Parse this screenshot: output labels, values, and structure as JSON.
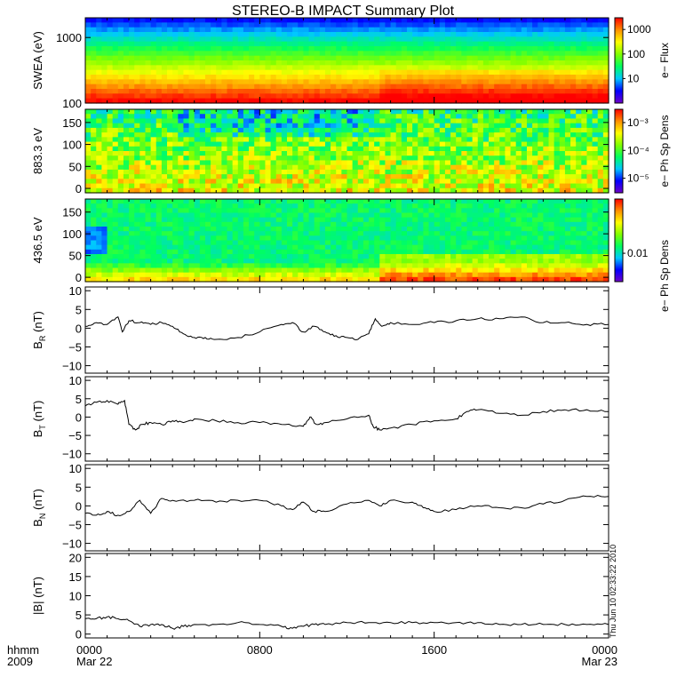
{
  "title": "STEREO-B IMPACT Summary Plot",
  "stamp": "Thu Jun 10 02:33:22 2010",
  "time_axis": {
    "row1_left": "hhmm",
    "row2_left": "2009",
    "ticks": [
      {
        "hour": 0,
        "label": "0000",
        "sub": "Mar 22"
      },
      {
        "hour": 8,
        "label": "0800",
        "sub": ""
      },
      {
        "hour": 16,
        "label": "1600",
        "sub": ""
      },
      {
        "hour": 24,
        "label": "0000",
        "sub": "Mar 23"
      }
    ],
    "range_hours": [
      0,
      24
    ]
  },
  "colors": {
    "line": "#000000",
    "ramp": [
      "#7000c8",
      "#0000ff",
      "#00c8ff",
      "#00ff60",
      "#80ff00",
      "#ffff00",
      "#ff9000",
      "#ff0000"
    ]
  },
  "chart_data": [
    {
      "type": "heatmap",
      "ylabel": "SWEA (eV)",
      "yscale": "log",
      "ylim": [
        100,
        2000
      ],
      "yticks": [
        {
          "v": 100,
          "label": "100"
        },
        {
          "v": 1000,
          "label": "1000"
        }
      ],
      "colorbar": {
        "label": "e− Flux",
        "scale": "log",
        "range": [
          1,
          3000
        ],
        "ticks": [
          {
            "v": 10,
            "label": "10"
          },
          {
            "v": 100,
            "label": "100"
          },
          {
            "v": 1000,
            "label": "1000"
          }
        ]
      }
    },
    {
      "type": "heatmap",
      "ylabel": "883.3 eV",
      "ylim": [
        -10,
        180
      ],
      "yticks": [
        {
          "v": 0,
          "label": "0"
        },
        {
          "v": 50,
          "label": "50"
        },
        {
          "v": 100,
          "label": "100"
        },
        {
          "v": 150,
          "label": "150"
        }
      ],
      "colorbar": {
        "label": "e− Ph Sp Dens",
        "scale": "log",
        "range": [
          3e-06,
          0.003
        ],
        "ticks": [
          {
            "v": 1e-05,
            "label": "10⁻⁵"
          },
          {
            "v": 0.0001,
            "label": "10⁻⁴"
          },
          {
            "v": 0.001,
            "label": "10⁻³"
          }
        ]
      }
    },
    {
      "type": "heatmap",
      "ylabel": "436.5 eV",
      "ylim": [
        -10,
        180
      ],
      "yticks": [
        {
          "v": 0,
          "label": "0"
        },
        {
          "v": 50,
          "label": "50"
        },
        {
          "v": 100,
          "label": "100"
        },
        {
          "v": 150,
          "label": "150"
        }
      ],
      "colorbar": {
        "label": "e− Ph Sp Dens",
        "scale": "log",
        "range": [
          0.003,
          0.1
        ],
        "ticks": [
          {
            "v": 0.01,
            "label": "0.01"
          }
        ]
      }
    },
    {
      "type": "line",
      "ylabel": "B",
      "ylabel_sub": "R",
      "ylabel_unit": "(nT)",
      "ylim": [
        -12,
        11
      ],
      "yticks": [
        {
          "v": -10,
          "label": "−10"
        },
        {
          "v": -5,
          "label": "−5"
        },
        {
          "v": 0,
          "label": "0"
        },
        {
          "v": 5,
          "label": "5"
        },
        {
          "v": 10,
          "label": "10"
        }
      ],
      "x": [
        0,
        0.5,
        1,
        1.5,
        1.7,
        2,
        2.5,
        3,
        3.5,
        4,
        4.5,
        5,
        5.5,
        6,
        7,
        8,
        9,
        9.5,
        10,
        10.5,
        11,
        11.5,
        12,
        12.5,
        13,
        13.3,
        13.6,
        14,
        15,
        16,
        17,
        18,
        19,
        20,
        21,
        22,
        23,
        24
      ],
      "values": [
        0.5,
        1.5,
        1.0,
        3.0,
        -1.0,
        2.0,
        1.5,
        1.0,
        1.5,
        0.5,
        -1.5,
        -2.5,
        -2.5,
        -3.0,
        -2.5,
        -1.0,
        1.0,
        1.5,
        -1.0,
        0.5,
        -1.0,
        -2.0,
        -2.5,
        -3.0,
        -1.5,
        2.5,
        0.5,
        1.5,
        1.0,
        1.5,
        2.0,
        2.5,
        2.5,
        3.0,
        1.5,
        1.5,
        1.0,
        1.0
      ]
    },
    {
      "type": "line",
      "ylabel": "B",
      "ylabel_sub": "T",
      "ylabel_unit": "(nT)",
      "ylim": [
        -12,
        11
      ],
      "yticks": [
        {
          "v": -10,
          "label": "−10"
        },
        {
          "v": -5,
          "label": "−5"
        },
        {
          "v": 0,
          "label": "0"
        },
        {
          "v": 5,
          "label": "5"
        },
        {
          "v": 10,
          "label": "10"
        }
      ],
      "x": [
        0,
        0.5,
        1,
        1.5,
        1.8,
        2,
        2.3,
        2.6,
        3,
        3.5,
        4,
        4.5,
        5,
        6,
        7,
        8,
        9,
        10,
        10.3,
        10.6,
        11,
        12,
        13,
        13.2,
        13.5,
        14,
        15,
        16,
        17,
        17.5,
        18,
        19,
        20,
        21,
        22,
        23,
        24
      ],
      "values": [
        3.0,
        4.0,
        4.5,
        3.5,
        4.5,
        -2.0,
        -3.5,
        -2.0,
        -1.5,
        -2.0,
        -1.0,
        -1.5,
        -0.5,
        -1.0,
        -1.5,
        -1.5,
        -2.0,
        -2.5,
        0.0,
        -2.0,
        -1.5,
        -0.5,
        0.5,
        -2.5,
        -3.5,
        -3.0,
        -2.0,
        -1.0,
        -0.5,
        1.5,
        2.0,
        1.0,
        0.5,
        1.5,
        2.0,
        2.0,
        1.5
      ]
    },
    {
      "type": "line",
      "ylabel": "B",
      "ylabel_sub": "N",
      "ylabel_unit": "(nT)",
      "ylim": [
        -12,
        11
      ],
      "yticks": [
        {
          "v": -10,
          "label": "−10"
        },
        {
          "v": -5,
          "label": "−5"
        },
        {
          "v": 0,
          "label": "0"
        },
        {
          "v": 5,
          "label": "5"
        },
        {
          "v": 10,
          "label": "10"
        }
      ],
      "x": [
        0,
        0.5,
        1,
        1.5,
        2,
        2.5,
        3,
        3.5,
        4,
        5,
        6,
        7,
        8,
        9,
        9.5,
        10,
        10.5,
        11,
        12,
        13,
        13.5,
        14,
        15,
        15.5,
        16,
        17,
        18,
        19,
        20,
        21,
        22,
        23,
        24
      ],
      "values": [
        -2.0,
        -2.5,
        -1.5,
        -2.5,
        -1.5,
        1.5,
        -2.0,
        2.0,
        1.5,
        1.5,
        1.0,
        1.5,
        1.5,
        0.0,
        -1.0,
        1.0,
        -1.5,
        -1.5,
        0.5,
        1.5,
        0.0,
        1.5,
        1.0,
        -0.5,
        -1.5,
        -1.0,
        0.0,
        -0.5,
        -0.5,
        0.5,
        1.5,
        2.5,
        2.5
      ]
    },
    {
      "type": "line",
      "ylabel": "|B|",
      "ylabel_sub": "",
      "ylabel_unit": "(nT)",
      "ylim": [
        -1,
        21
      ],
      "yticks": [
        {
          "v": 0,
          "label": "0"
        },
        {
          "v": 5,
          "label": "5"
        },
        {
          "v": 10,
          "label": "10"
        },
        {
          "v": 15,
          "label": "15"
        },
        {
          "v": 20,
          "label": "20"
        }
      ],
      "x": [
        0,
        0.5,
        1,
        1.5,
        2,
        2.5,
        3,
        3.5,
        4,
        4.5,
        5,
        6,
        7,
        8,
        9,
        9.5,
        10,
        10.5,
        11,
        12,
        13,
        14,
        15,
        16,
        17,
        18,
        19,
        20,
        21,
        22,
        23,
        24
      ],
      "values": [
        4.0,
        4.0,
        4.5,
        4.0,
        3.5,
        2.0,
        2.5,
        2.5,
        1.5,
        2.0,
        2.5,
        2.5,
        3.0,
        2.5,
        2.0,
        1.5,
        2.0,
        2.5,
        2.5,
        3.0,
        3.0,
        3.0,
        3.0,
        3.0,
        3.0,
        3.0,
        2.5,
        2.5,
        2.5,
        2.5,
        2.5,
        2.5
      ]
    }
  ]
}
